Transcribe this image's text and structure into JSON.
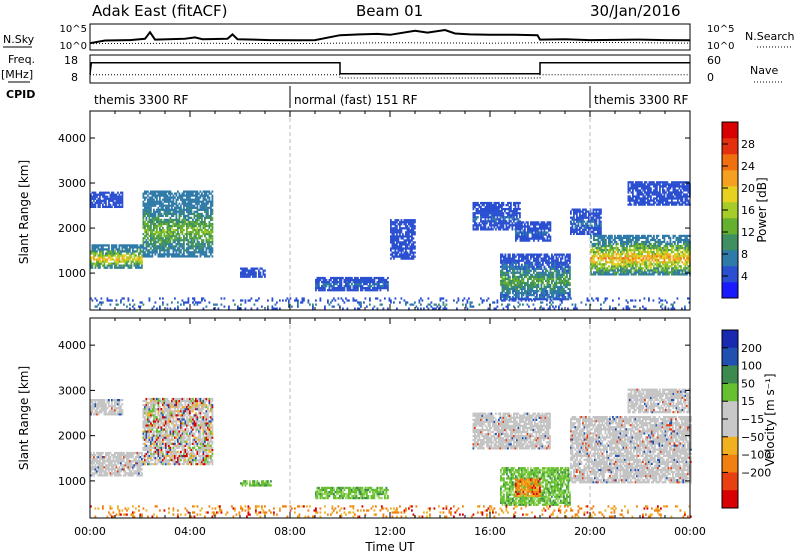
{
  "header": {
    "radar": "Adak East (fitACF)",
    "beam": "Beam 01",
    "date": "30/Jan/2016"
  },
  "panel_labels": {
    "nsky": "N.Sky",
    "nsearch": "N.Search",
    "freq": "Freq.",
    "freq_unit": "[MHz]",
    "nave": "Nave",
    "cpid": "CPID"
  },
  "cpid_segments": [
    {
      "label": "themis 3300 RF",
      "start_hour": 0,
      "end_hour": 8
    },
    {
      "label": "normal (fast) 151 RF",
      "start_hour": 8,
      "end_hour": 20
    },
    {
      "label": "themis 3300 RF",
      "start_hour": 20,
      "end_hour": 24
    }
  ],
  "colors": {
    "power_scale": [
      "#1a1aff",
      "#2a4fd0",
      "#2e7aa8",
      "#3f9060",
      "#66b030",
      "#a6cc2a",
      "#e6d020",
      "#f5a020",
      "#f07010",
      "#e53010",
      "#d80000"
    ],
    "velocity_scale": [
      "#1a2ab0",
      "#2050b0",
      "#3c8a50",
      "#66c030",
      "#c8c8c8",
      "#c8c8c8",
      "#f0b020",
      "#f08010",
      "#e84010",
      "#d80000"
    ]
  },
  "chart_data": [
    {
      "type": "line",
      "name": "sky-search-noise",
      "x_range_hours": [
        0,
        24
      ],
      "left_ticks": [
        "10^5",
        "10^0"
      ],
      "right_ticks": [
        "10^5",
        "10^0"
      ],
      "series": [
        {
          "name": "N.Sky",
          "points": [
            [
              0,
              0.22
            ],
            [
              0.6,
              0.34
            ],
            [
              1.6,
              0.36
            ],
            [
              2.2,
              0.42
            ],
            [
              2.4,
              0.72
            ],
            [
              2.6,
              0.38
            ],
            [
              3.8,
              0.42
            ],
            [
              4.2,
              0.48
            ],
            [
              4.5,
              0.4
            ],
            [
              5.5,
              0.42
            ],
            [
              5.7,
              0.62
            ],
            [
              5.9,
              0.4
            ],
            [
              7.2,
              0.36
            ],
            [
              8.4,
              0.35
            ],
            [
              9.0,
              0.36
            ],
            [
              10.0,
              0.58
            ],
            [
              10.8,
              0.62
            ],
            [
              11.5,
              0.64
            ],
            [
              12.0,
              0.6
            ],
            [
              13.0,
              0.78
            ],
            [
              13.5,
              0.7
            ],
            [
              14.2,
              0.82
            ],
            [
              14.6,
              0.66
            ],
            [
              15.2,
              0.62
            ],
            [
              16.0,
              0.6
            ],
            [
              17.0,
              0.6
            ],
            [
              17.9,
              0.58
            ],
            [
              18.0,
              0.38
            ],
            [
              19.0,
              0.4
            ],
            [
              20.0,
              0.36
            ],
            [
              21.0,
              0.37
            ],
            [
              22.0,
              0.38
            ],
            [
              23.0,
              0.36
            ],
            [
              24.0,
              0.35
            ]
          ]
        },
        {
          "name": "N.Search",
          "points": [
            [
              0,
              0.2
            ],
            [
              4,
              0.22
            ],
            [
              8,
              0.2
            ],
            [
              12,
              0.24
            ],
            [
              16,
              0.22
            ],
            [
              20,
              0.26
            ],
            [
              22,
              0.24
            ],
            [
              24,
              0.22
            ]
          ]
        }
      ]
    },
    {
      "type": "line",
      "name": "frequency-nave",
      "x_range_hours": [
        0,
        24
      ],
      "left_ticks": [
        18,
        8
      ],
      "right_ticks": [
        60,
        0
      ],
      "series": [
        {
          "name": "Freq.",
          "unit": "MHz",
          "points": [
            [
              0,
              11.2
            ],
            [
              0.05,
              16.0
            ],
            [
              10.0,
              16.0
            ],
            [
              10.0,
              11.4
            ],
            [
              18.0,
              11.4
            ],
            [
              18.0,
              16.0
            ],
            [
              24,
              16.0
            ]
          ]
        },
        {
          "name": "Nave",
          "points": [
            [
              0,
              18
            ],
            [
              10,
              18
            ],
            [
              10,
              10
            ],
            [
              18,
              10
            ],
            [
              18,
              18
            ],
            [
              24,
              18
            ]
          ]
        }
      ]
    },
    {
      "type": "heatmap",
      "name": "power",
      "x_range_hours": [
        0,
        24
      ],
      "x_ticks": [
        "00:00",
        "04:00",
        "08:00",
        "12:00",
        "16:00",
        "20:00",
        "00:00"
      ],
      "ylabel": "Slant Range [km]",
      "ylim": [
        180,
        4600
      ],
      "y_ticks": [
        1000,
        2000,
        3000,
        4000
      ],
      "colorbar_label": "Power [dB]",
      "colorbar_ticks": [
        4,
        8,
        12,
        16,
        20,
        24,
        28
      ],
      "colorbar_range": [
        0,
        32
      ],
      "blobs": [
        {
          "t0": 0.0,
          "t1": 2.1,
          "r_lo": 1100,
          "r_hi": 1600,
          "v_hi": 24,
          "v_lo": 8
        },
        {
          "t0": 0.0,
          "t1": 1.3,
          "r_lo": 2450,
          "r_hi": 2800,
          "v_hi": 6,
          "v_lo": 3
        },
        {
          "t0": 2.1,
          "t1": 4.9,
          "r_lo": 1350,
          "r_hi": 2800,
          "v_hi": 16,
          "v_lo": 6
        },
        {
          "t0": 6.0,
          "t1": 7.0,
          "r_lo": 900,
          "r_hi": 1100,
          "v_hi": 6,
          "v_lo": 3
        },
        {
          "t0": 9.0,
          "t1": 11.9,
          "r_lo": 600,
          "r_hi": 900,
          "v_hi": 8,
          "v_lo": 3
        },
        {
          "t0": 12.0,
          "t1": 13.0,
          "r_lo": 1300,
          "r_hi": 2200,
          "v_hi": 5,
          "v_lo": 3
        },
        {
          "t0": 15.3,
          "t1": 17.2,
          "r_lo": 1950,
          "r_hi": 2550,
          "v_hi": 7,
          "v_lo": 3
        },
        {
          "t0": 17.0,
          "t1": 18.4,
          "r_lo": 1700,
          "r_hi": 2150,
          "v_hi": 7,
          "v_lo": 3
        },
        {
          "t0": 16.4,
          "t1": 19.2,
          "r_lo": 400,
          "r_hi": 1400,
          "v_hi": 14,
          "v_lo": 5
        },
        {
          "t0": 19.2,
          "t1": 20.4,
          "r_lo": 1850,
          "r_hi": 2400,
          "v_hi": 8,
          "v_lo": 3
        },
        {
          "t0": 20.0,
          "t1": 24.0,
          "r_lo": 950,
          "r_hi": 1850,
          "v_hi": 26,
          "v_lo": 8
        },
        {
          "t0": 21.5,
          "t1": 24.0,
          "r_lo": 2500,
          "r_hi": 3000,
          "v_hi": 6,
          "v_lo": 3
        },
        {
          "t0": 0.0,
          "t1": 24.0,
          "r_lo": 190,
          "r_hi": 420,
          "v_hi": 10,
          "v_lo": 3,
          "sparse": true
        }
      ]
    },
    {
      "type": "heatmap",
      "name": "velocity",
      "x_range_hours": [
        0,
        24
      ],
      "x_ticks": [
        "00:00",
        "04:00",
        "08:00",
        "12:00",
        "16:00",
        "20:00",
        "00:00"
      ],
      "xlabel": "Time UT",
      "ylabel": "Slant Range [km]",
      "ylim": [
        180,
        4600
      ],
      "y_ticks": [
        1000,
        2000,
        3000,
        4000
      ],
      "colorbar_label": "Velocity [m s⁻¹]",
      "colorbar_ticks": [
        "200",
        "100",
        "50",
        "15",
        "−15",
        "−50",
        "−100",
        "−200"
      ],
      "blobs": [
        {
          "t0": 0.0,
          "t1": 2.1,
          "r_lo": 1100,
          "r_hi": 1600,
          "class": "ground"
        },
        {
          "t0": 0.0,
          "t1": 1.3,
          "r_lo": 2450,
          "r_hi": 2800,
          "class": "ground"
        },
        {
          "t0": 2.1,
          "t1": 4.9,
          "r_lo": 1350,
          "r_hi": 2800,
          "class": "mixed"
        },
        {
          "t0": 6.0,
          "t1": 7.2,
          "r_lo": 880,
          "r_hi": 1000,
          "class": "positive"
        },
        {
          "t0": 9.0,
          "t1": 11.9,
          "r_lo": 600,
          "r_hi": 850,
          "class": "positive"
        },
        {
          "t0": 15.3,
          "t1": 18.4,
          "r_lo": 1700,
          "r_hi": 2500,
          "class": "ground"
        },
        {
          "t0": 16.4,
          "t1": 19.2,
          "r_lo": 450,
          "r_hi": 1300,
          "class": "positive"
        },
        {
          "t0": 17.0,
          "t1": 18.0,
          "r_lo": 650,
          "r_hi": 1050,
          "class": "negative"
        },
        {
          "t0": 19.2,
          "t1": 24.0,
          "r_lo": 950,
          "r_hi": 2400,
          "class": "ground"
        },
        {
          "t0": 21.5,
          "t1": 24.0,
          "r_lo": 2500,
          "r_hi": 3000,
          "class": "ground"
        },
        {
          "t0": 0.0,
          "t1": 24.0,
          "r_lo": 190,
          "r_hi": 420,
          "class": "negative",
          "sparse": true
        }
      ]
    }
  ]
}
